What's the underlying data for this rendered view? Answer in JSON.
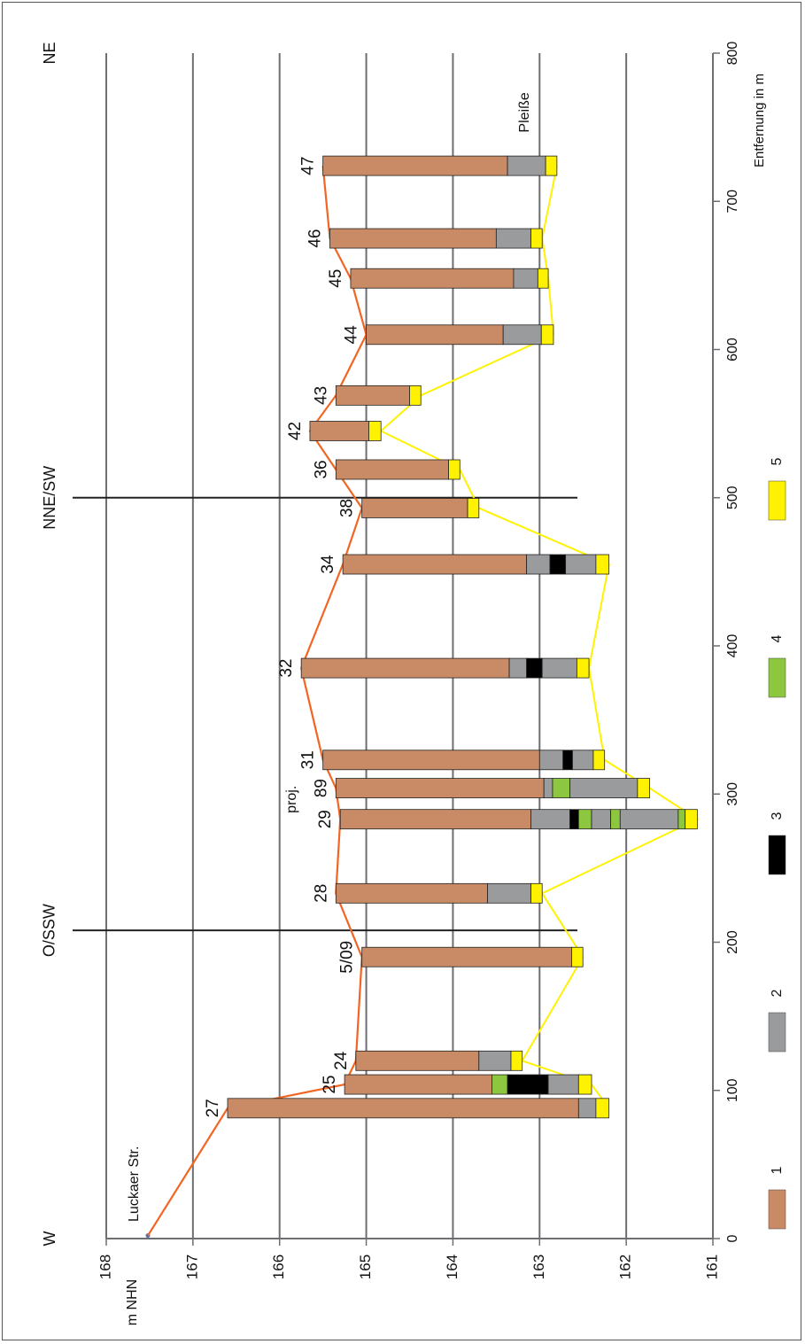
{
  "chart_data": {
    "type": "bar",
    "orientation": "rotated-90",
    "y_axis_label": "m NHN",
    "y_ticks": [
      168,
      167,
      166,
      165,
      164,
      163,
      162,
      161
    ],
    "ylim": [
      161,
      168
    ],
    "x_axis_label": "Entfernung in m",
    "x_ticks": [
      0,
      100,
      200,
      300,
      400,
      500,
      600,
      700,
      800
    ],
    "xlim": [
      0,
      800
    ],
    "grid": true,
    "directions": [
      {
        "label": "W",
        "x": 0
      },
      {
        "label": "O/SSW",
        "x": 208
      },
      {
        "label": "NNE/SW",
        "x": 500
      },
      {
        "label": "NE",
        "x": 800
      }
    ],
    "section_lines": [
      208,
      500
    ],
    "annotations": [
      {
        "text": "Luckaer Str.",
        "x": 10
      },
      {
        "text": "Pleiße",
        "x": 760
      },
      {
        "text": "proj.",
        "x": 300
      }
    ],
    "surface_point": {
      "x": 2,
      "elevation": 167.52
    },
    "layer_colors": {
      "1": "#c98b65",
      "2": "#9a9b9d",
      "3": "#000000",
      "4": "#8dc63f",
      "5": "#fff200"
    },
    "legend": [
      "1",
      "2",
      "3",
      "4",
      "5"
    ],
    "boreholes": [
      {
        "id": "27",
        "x": 88,
        "top": 166.6,
        "layers": [
          [
            1,
            162.55
          ],
          [
            2,
            162.35
          ],
          [
            5,
            162.2
          ]
        ]
      },
      {
        "id": "25",
        "x": 104,
        "top": 165.25,
        "layers": [
          [
            1,
            163.55
          ],
          [
            4,
            163.37
          ],
          [
            3,
            162.9
          ],
          [
            2,
            162.55
          ],
          [
            5,
            162.4
          ]
        ]
      },
      {
        "id": "24",
        "x": 120,
        "top": 165.12,
        "layers": [
          [
            1,
            163.7
          ],
          [
            2,
            163.33
          ],
          [
            5,
            163.2
          ]
        ]
      },
      {
        "id": "5/09",
        "x": 190,
        "top": 165.05,
        "layers": [
          [
            1,
            162.63
          ],
          [
            5,
            162.5
          ]
        ]
      },
      {
        "id": "28",
        "x": 233,
        "top": 165.35,
        "layers": [
          [
            1,
            163.6
          ],
          [
            2,
            163.1
          ],
          [
            5,
            162.97
          ]
        ]
      },
      {
        "id": "29",
        "x": 283,
        "top": 165.3,
        "layers": [
          [
            1,
            163.1
          ],
          [
            2,
            162.65
          ],
          [
            3,
            162.55
          ],
          [
            4,
            162.4
          ],
          [
            2,
            162.18
          ],
          [
            4,
            162.07
          ],
          [
            2,
            161.4
          ],
          [
            4,
            161.32
          ],
          [
            5,
            161.18
          ]
        ]
      },
      {
        "id": "89",
        "x": 304,
        "top": 165.35,
        "layers": [
          [
            1,
            162.95
          ],
          [
            2,
            162.85
          ],
          [
            4,
            162.65
          ],
          [
            2,
            161.87
          ],
          [
            5,
            161.73
          ]
        ]
      },
      {
        "id": "31",
        "x": 323,
        "top": 165.5,
        "layers": [
          [
            1,
            163.0
          ],
          [
            2,
            162.73
          ],
          [
            3,
            162.62
          ],
          [
            2,
            162.38
          ],
          [
            5,
            162.25
          ]
        ]
      },
      {
        "id": "32",
        "x": 385,
        "top": 165.75,
        "layers": [
          [
            1,
            163.35
          ],
          [
            2,
            163.15
          ],
          [
            3,
            162.97
          ],
          [
            2,
            162.57
          ],
          [
            5,
            162.43
          ]
        ]
      },
      {
        "id": "34",
        "x": 455,
        "top": 165.27,
        "layers": [
          [
            1,
            163.15
          ],
          [
            2,
            162.88
          ],
          [
            3,
            162.7
          ],
          [
            2,
            162.35
          ],
          [
            5,
            162.2
          ]
        ]
      },
      {
        "id": "38",
        "x": 493,
        "top": 165.05,
        "layers": [
          [
            1,
            163.83
          ],
          [
            5,
            163.7
          ]
        ]
      },
      {
        "id": "36",
        "x": 519,
        "top": 165.35,
        "layers": [
          [
            1,
            164.05
          ],
          [
            5,
            163.92
          ]
        ]
      },
      {
        "id": "42",
        "x": 545,
        "top": 165.65,
        "layers": [
          [
            1,
            164.97
          ],
          [
            5,
            164.83
          ]
        ]
      },
      {
        "id": "43",
        "x": 569,
        "top": 165.35,
        "layers": [
          [
            1,
            164.5
          ],
          [
            5,
            164.37
          ]
        ]
      },
      {
        "id": "44",
        "x": 610,
        "top": 165.0,
        "layers": [
          [
            1,
            163.42
          ],
          [
            2,
            162.98
          ],
          [
            5,
            162.84
          ]
        ]
      },
      {
        "id": "45",
        "x": 648,
        "top": 165.18,
        "layers": [
          [
            1,
            163.3
          ],
          [
            2,
            163.02
          ],
          [
            5,
            162.9
          ]
        ]
      },
      {
        "id": "46",
        "x": 675,
        "top": 165.42,
        "layers": [
          [
            1,
            163.5
          ],
          [
            2,
            163.1
          ],
          [
            5,
            162.97
          ]
        ]
      },
      {
        "id": "47",
        "x": 724,
        "top": 165.5,
        "layers": [
          [
            1,
            163.37
          ],
          [
            2,
            162.93
          ],
          [
            5,
            162.8
          ]
        ]
      }
    ]
  }
}
